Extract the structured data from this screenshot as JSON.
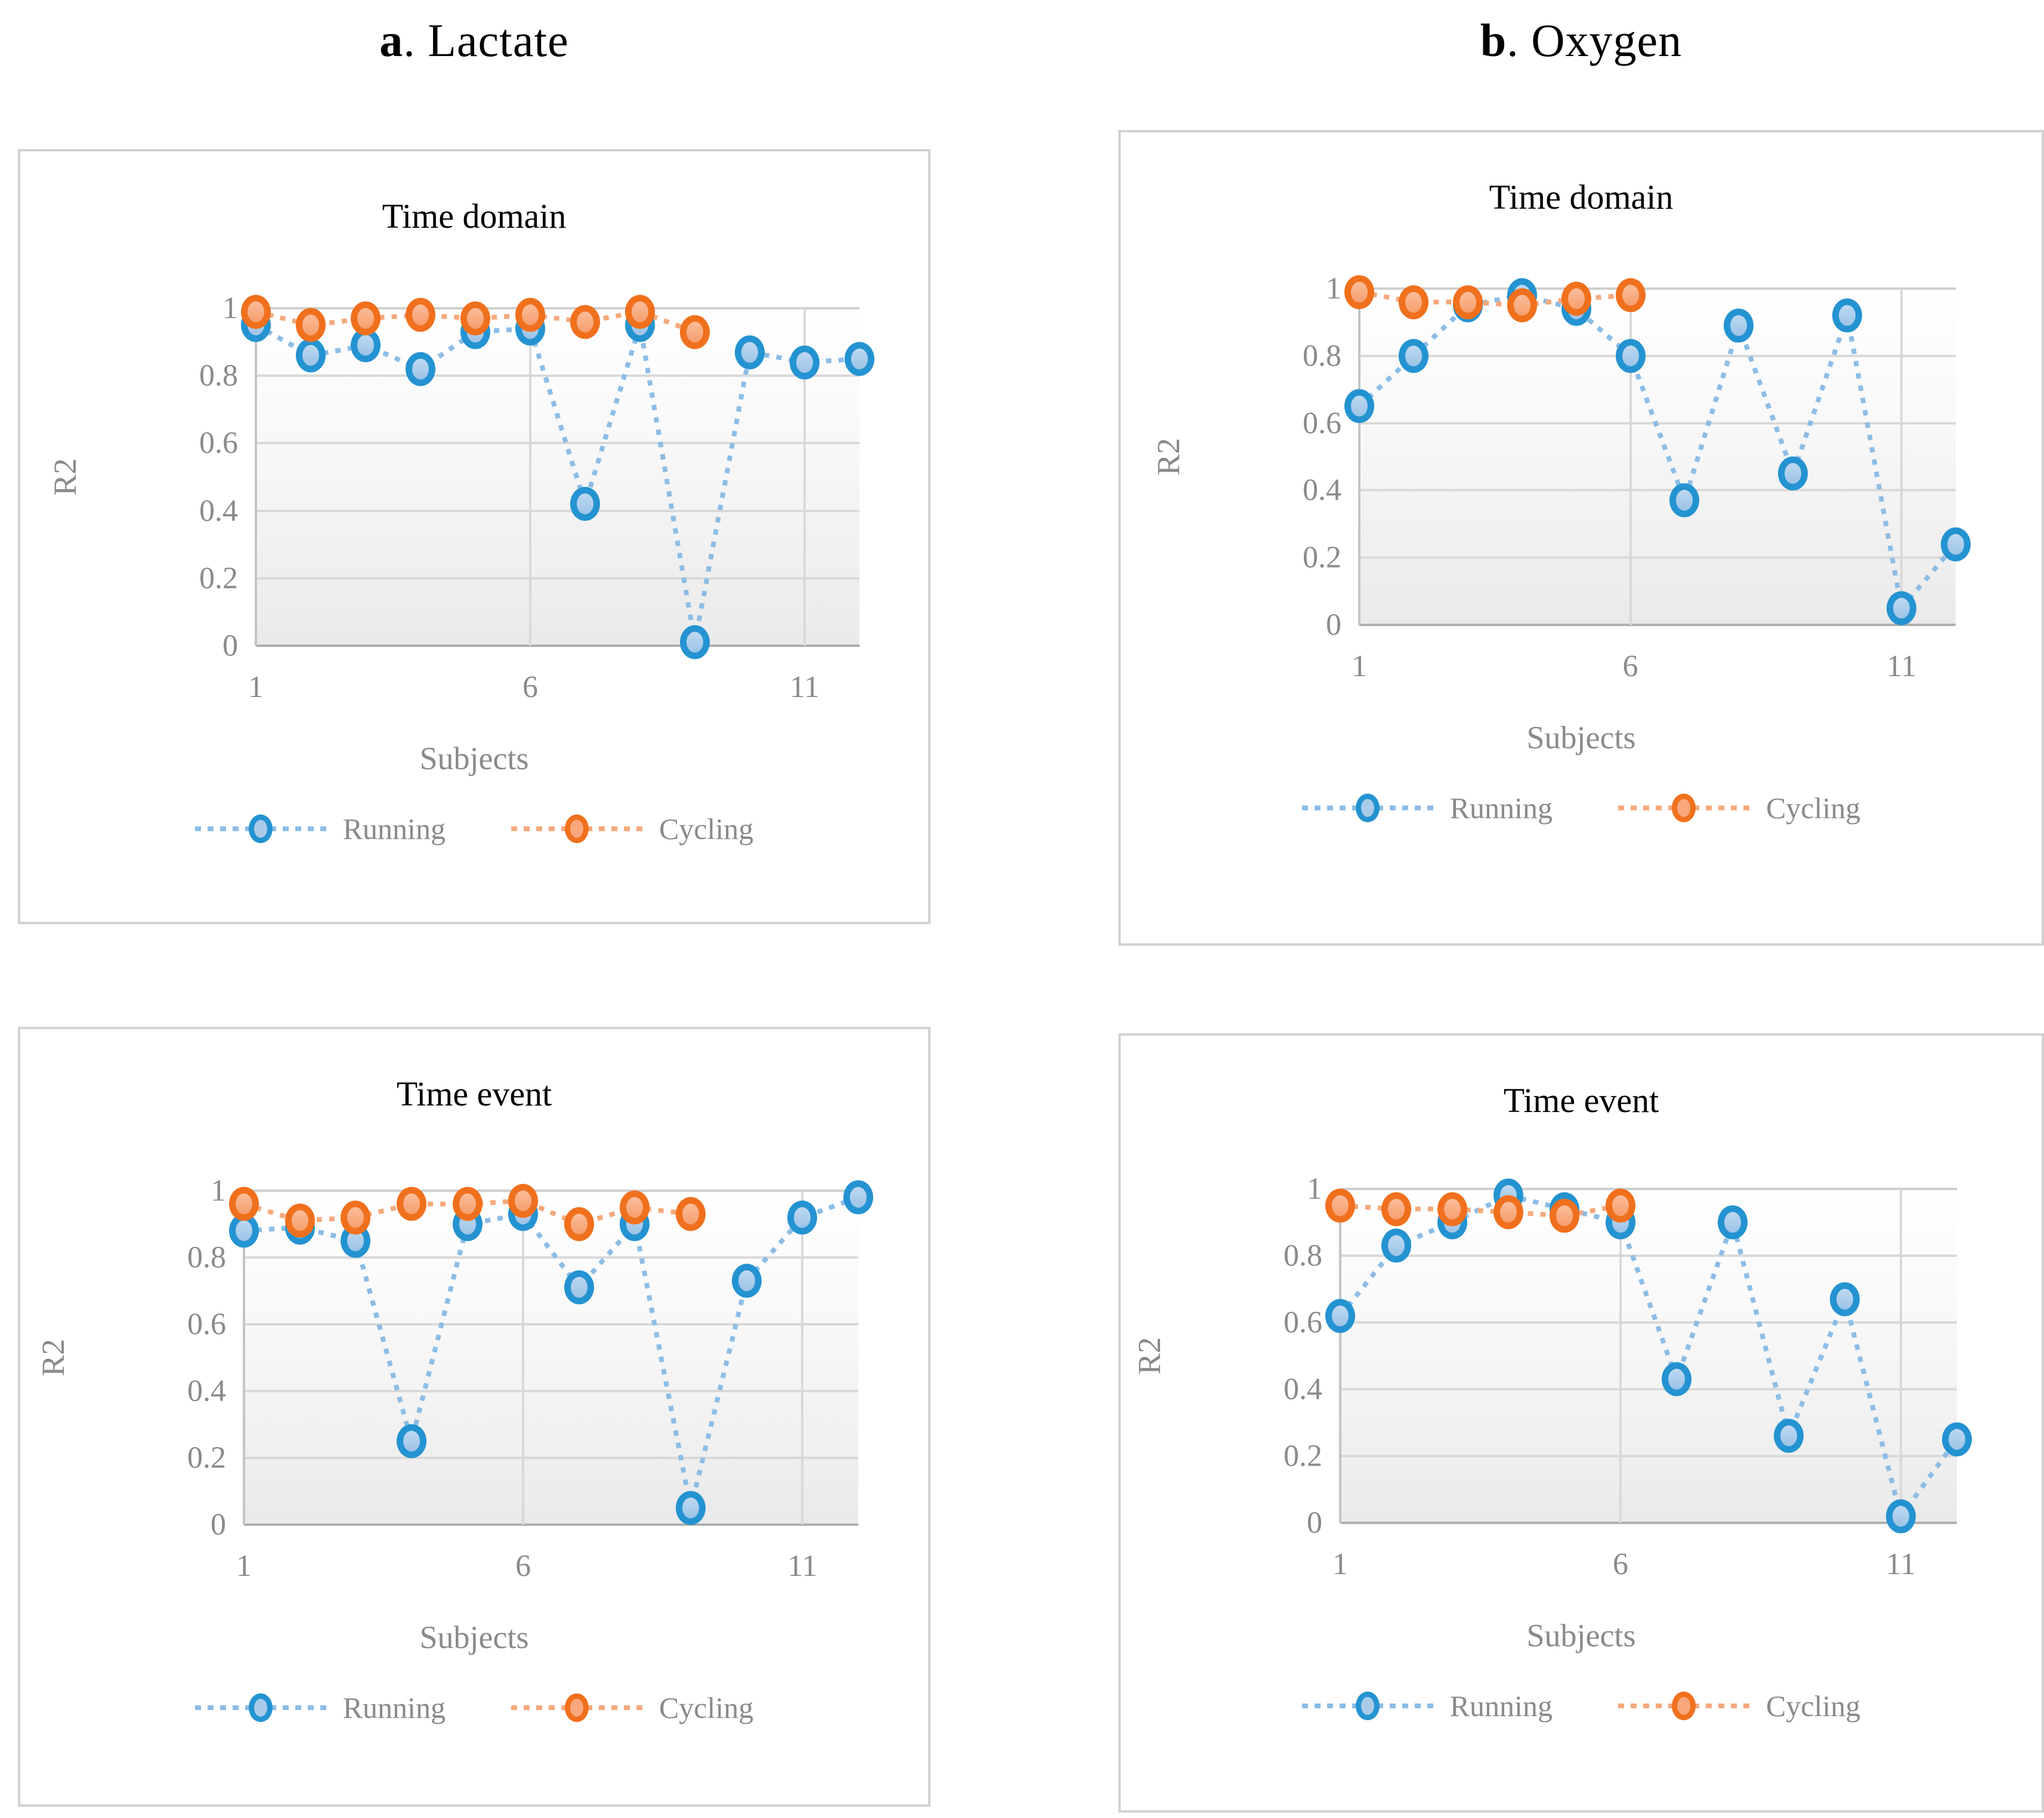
{
  "headers": [
    {
      "prefix": "a",
      "suffix": ". Lactate"
    },
    {
      "prefix": "b",
      "suffix": ". Oxygen"
    }
  ],
  "axes": {
    "xlabel": "Subjects",
    "ylabel": "R2",
    "yticks": [
      "1",
      "0.8",
      "0.6",
      "0.4",
      "0.2",
      "0"
    ],
    "xticks": [
      "1",
      "6",
      "11"
    ]
  },
  "legend": {
    "items": [
      {
        "name": "Running",
        "color_border": "#2493d1",
        "color_fill": "#a9cbe9",
        "color_line": "#8cbde6"
      },
      {
        "name": "Cycling",
        "color_border": "#f0701d",
        "color_fill": "#f8a87c",
        "color_line": "#f6a97c"
      }
    ]
  },
  "colors": {
    "grid": "#d9d9d9",
    "axis": "#c4c4c4",
    "tick_text": "#8a8a8a",
    "title_text": "#000000",
    "panel_border": "#d2d2d2"
  },
  "chart_data": [
    {
      "type": "line",
      "group": "Lactate",
      "title": "Time domain",
      "xlabel": "Subjects",
      "ylabel": "R2",
      "ylim": [
        0,
        1
      ],
      "xticks": [
        1,
        6,
        11
      ],
      "x": [
        1,
        2,
        3,
        4,
        5,
        6,
        7,
        8,
        9,
        10,
        11,
        12
      ],
      "series": [
        {
          "name": "Running",
          "values": [
            0.95,
            0.86,
            0.89,
            0.82,
            0.93,
            0.94,
            0.42,
            0.95,
            0.01,
            0.87,
            0.84,
            0.85
          ]
        },
        {
          "name": "Cycling",
          "values": [
            0.99,
            0.95,
            0.97,
            0.98,
            0.97,
            0.98,
            0.96,
            0.99,
            0.93
          ]
        }
      ]
    },
    {
      "type": "line",
      "group": "Oxygen",
      "title": "Time domain",
      "xlabel": "Subjects",
      "ylabel": "R2",
      "ylim": [
        0,
        1
      ],
      "xticks": [
        1,
        6,
        11
      ],
      "x": [
        1,
        2,
        3,
        4,
        5,
        6,
        7,
        8,
        9,
        10,
        11,
        12
      ],
      "series": [
        {
          "name": "Running",
          "values": [
            0.65,
            0.8,
            0.95,
            0.98,
            0.94,
            0.8,
            0.37,
            0.89,
            0.45,
            0.92,
            0.05,
            0.24
          ]
        },
        {
          "name": "Cycling",
          "values": [
            0.99,
            0.96,
            0.96,
            0.95,
            0.97,
            0.98
          ]
        }
      ]
    },
    {
      "type": "line",
      "group": "Lactate",
      "title": "Time event",
      "xlabel": "Subjects",
      "ylabel": "R2",
      "ylim": [
        0,
        1
      ],
      "xticks": [
        1,
        6,
        11
      ],
      "x": [
        1,
        2,
        3,
        4,
        5,
        6,
        7,
        8,
        9,
        10,
        11,
        12
      ],
      "series": [
        {
          "name": "Running",
          "values": [
            0.88,
            0.89,
            0.85,
            0.25,
            0.9,
            0.93,
            0.71,
            0.9,
            0.05,
            0.73,
            0.92,
            0.98
          ]
        },
        {
          "name": "Cycling",
          "values": [
            0.96,
            0.91,
            0.92,
            0.96,
            0.96,
            0.97,
            0.9,
            0.95,
            0.93
          ]
        }
      ]
    },
    {
      "type": "line",
      "group": "Oxygen",
      "title": "Time event",
      "xlabel": "Subjects",
      "ylabel": "R2",
      "ylim": [
        0,
        1
      ],
      "xticks": [
        1,
        6,
        11
      ],
      "x": [
        1,
        2,
        3,
        4,
        5,
        6,
        7,
        8,
        9,
        10,
        11,
        12
      ],
      "series": [
        {
          "name": "Running",
          "values": [
            0.62,
            0.83,
            0.9,
            0.98,
            0.94,
            0.9,
            0.43,
            0.9,
            0.26,
            0.67,
            0.02,
            0.25
          ]
        },
        {
          "name": "Cycling",
          "values": [
            0.95,
            0.94,
            0.94,
            0.93,
            0.92,
            0.95
          ]
        }
      ]
    }
  ]
}
